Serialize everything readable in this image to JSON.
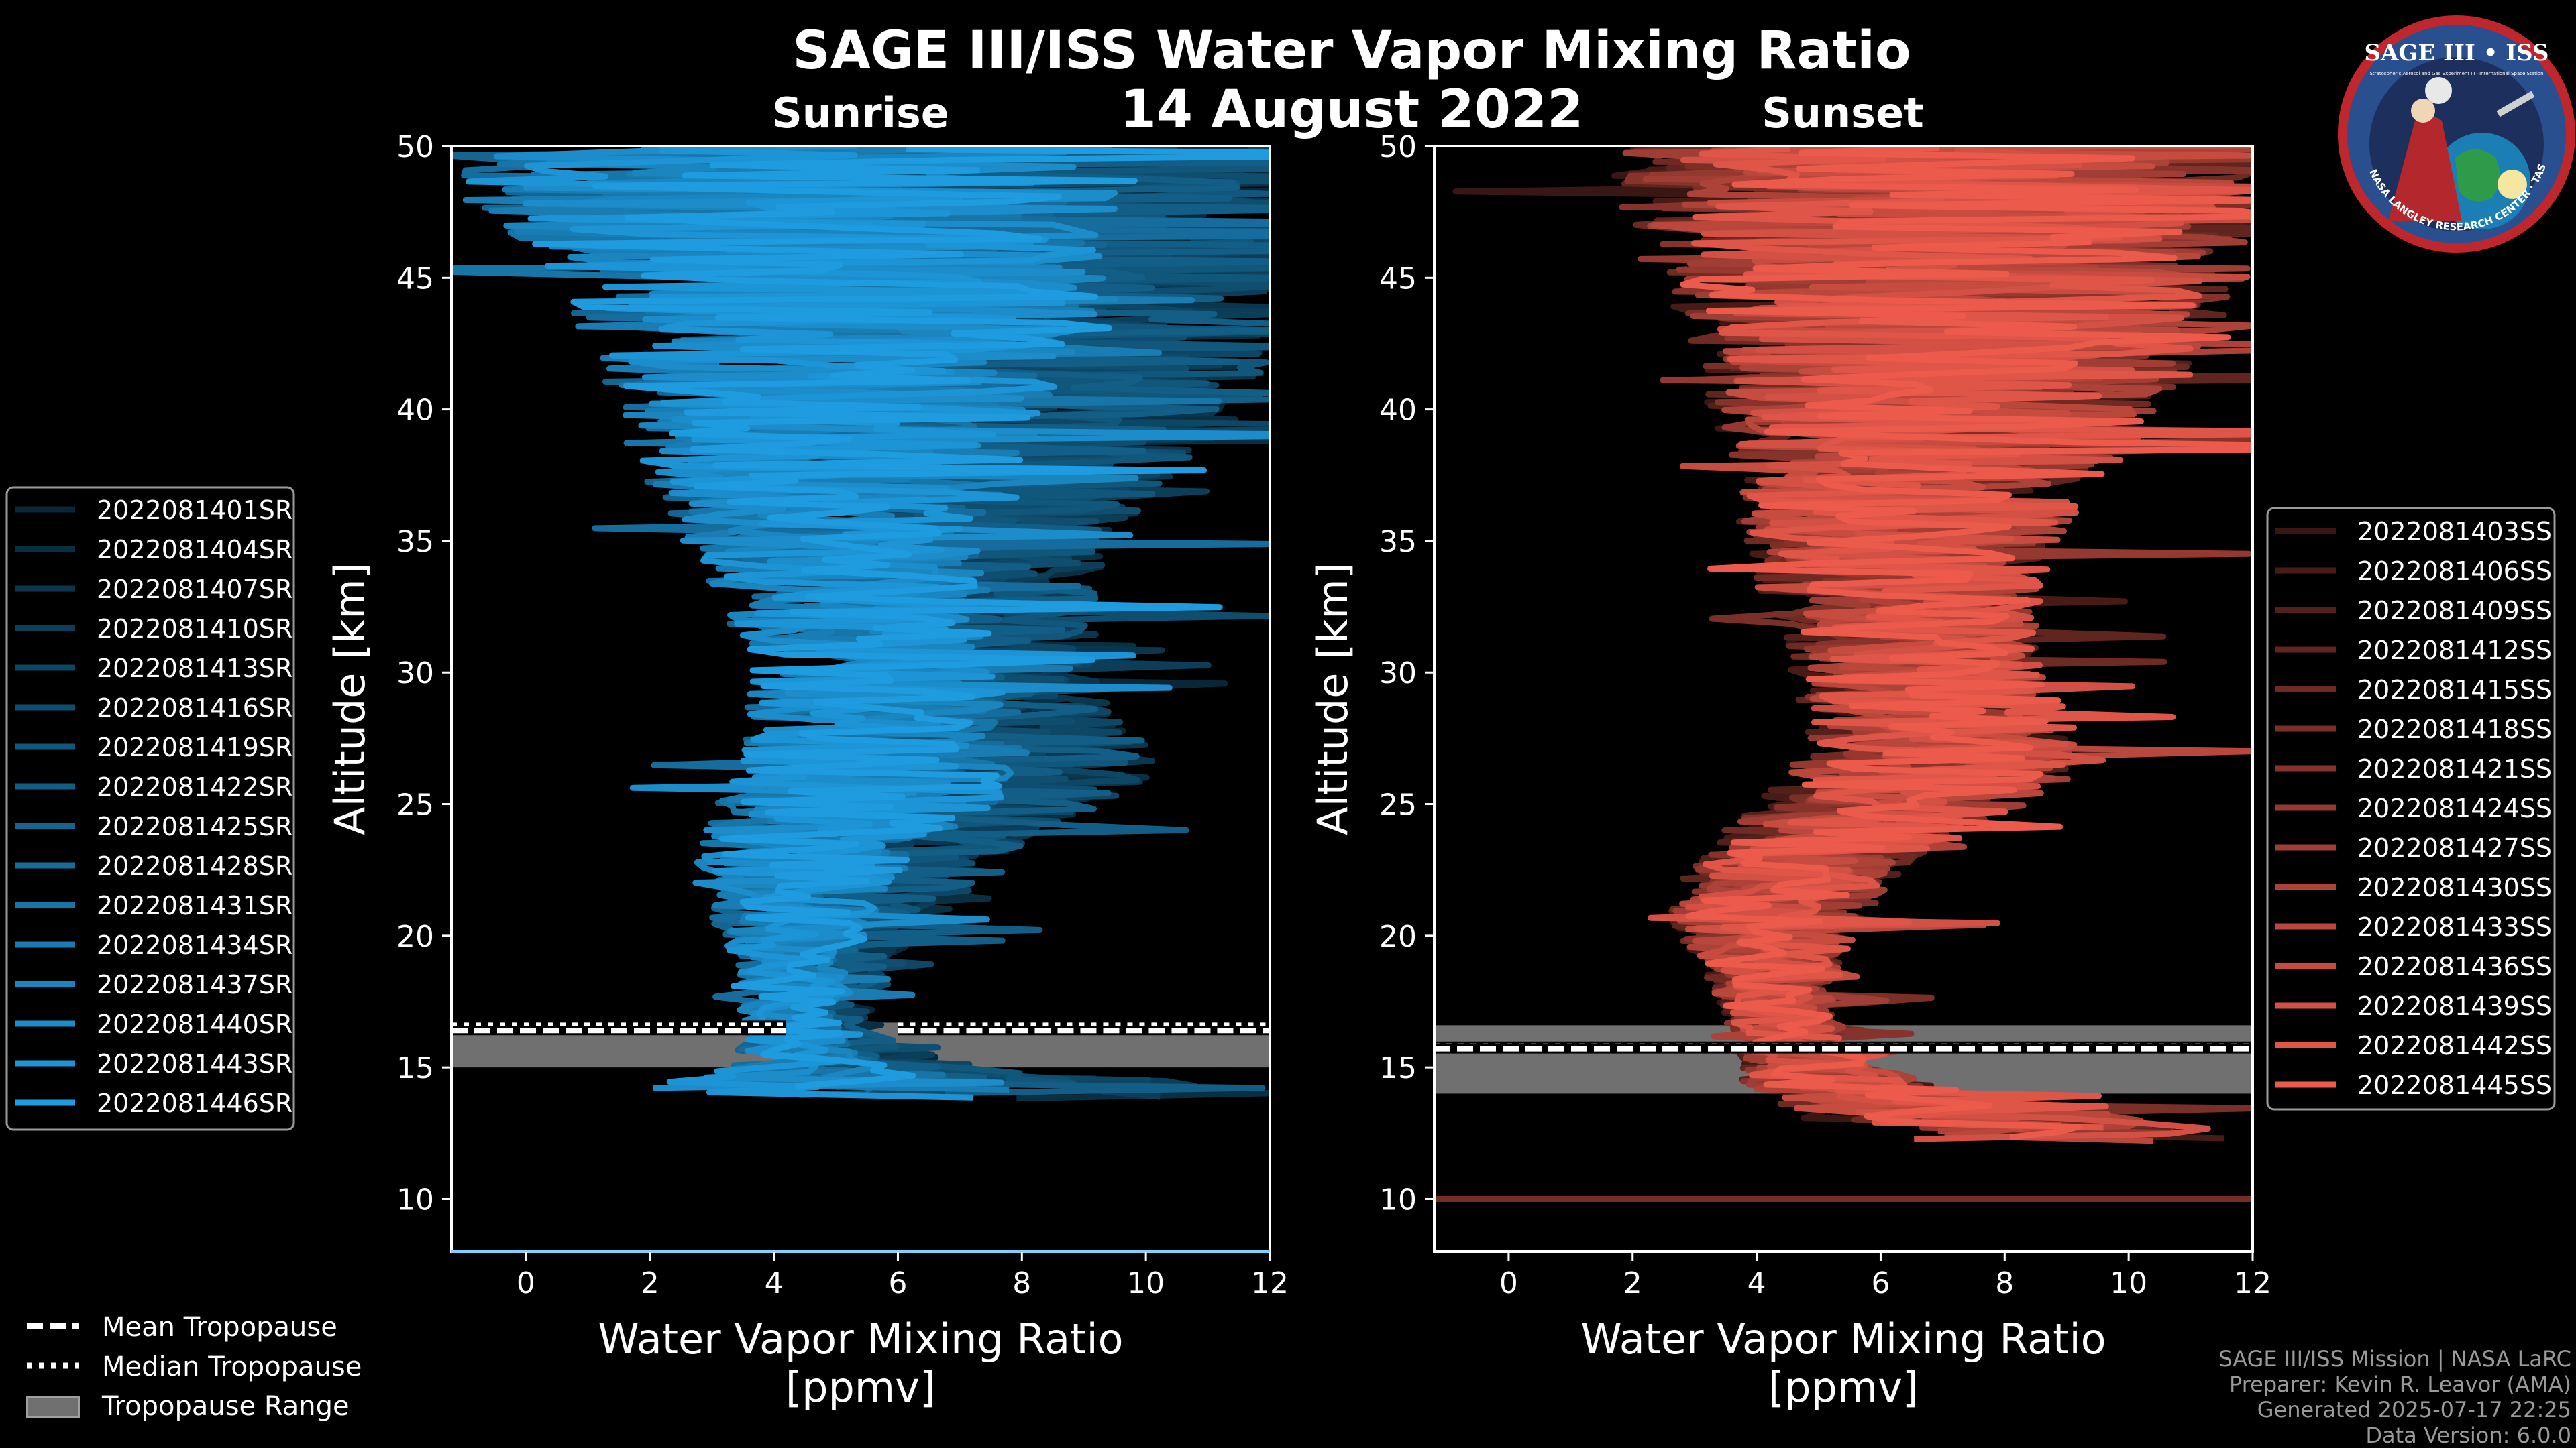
{
  "title": "SAGE III/ISS Water Vapor Mixing Ratio",
  "date": "14 August 2022",
  "colors": {
    "sunrise": "#1f9ce0",
    "sunset": "#ec5a4c",
    "background": "#000000",
    "tropo_range": "#707070"
  },
  "chart_data": [
    {
      "type": "line",
      "panel": "Sunrise",
      "title": "Sunrise",
      "xlabel": "Water Vapor Mixing Ratio\n[ppmv]",
      "ylabel": "Altitude [km]",
      "xlim": [
        -1.2,
        12
      ],
      "ylim": [
        8,
        50
      ],
      "xticks": [
        0,
        2,
        4,
        6,
        8,
        10,
        12
      ],
      "yticks": [
        10,
        15,
        20,
        25,
        30,
        35,
        40,
        45,
        50
      ],
      "tropopause": {
        "mean": 16.4,
        "median": 16.6,
        "range": [
          15.0,
          16.7
        ],
        "mean_gap": [
          4.2,
          6.0
        ],
        "median_gap": [
          4.2,
          6.0
        ]
      },
      "series_count": 16,
      "series_names": [
        "2022081401SR",
        "2022081404SR",
        "2022081407SR",
        "2022081410SR",
        "2022081413SR",
        "2022081416SR",
        "2022081419SR",
        "2022081422SR",
        "2022081425SR",
        "2022081428SR",
        "2022081431SR",
        "2022081434SR",
        "2022081437SR",
        "2022081440SR",
        "2022081443SR",
        "2022081446SR"
      ],
      "profile": {
        "alt": [
          14.2,
          15,
          16,
          17,
          18,
          19,
          20,
          21,
          22,
          23,
          24,
          25,
          26,
          27,
          28,
          30,
          32,
          34,
          36,
          38,
          40,
          42,
          44,
          46,
          48,
          50
        ],
        "center": [
          6.5,
          5.2,
          4.7,
          4.5,
          4.6,
          4.7,
          4.8,
          4.9,
          5.0,
          5.3,
          5.7,
          6.3,
          6.7,
          6.8,
          6.6,
          6.4,
          6.2,
          6.0,
          6.0,
          6.2,
          6.6,
          7.0,
          6.8,
          6.6,
          6.5,
          6.5
        ],
        "spread": [
          4.5,
          1.5,
          1.0,
          0.9,
          1.0,
          1.1,
          1.3,
          1.6,
          1.8,
          2.0,
          2.2,
          2.5,
          2.7,
          2.6,
          2.4,
          2.2,
          2.3,
          2.6,
          3.0,
          3.5,
          4.0,
          4.5,
          5.0,
          5.5,
          6.0,
          6.5
        ]
      }
    },
    {
      "type": "line",
      "panel": "Sunset",
      "title": "Sunset",
      "xlabel": "Water Vapor Mixing Ratio\n[ppmv]",
      "ylabel": "Altitude [km]",
      "xlim": [
        -1.2,
        12
      ],
      "ylim": [
        8,
        50
      ],
      "xticks": [
        0,
        2,
        4,
        6,
        8,
        10,
        12
      ],
      "yticks": [
        10,
        15,
        20,
        25,
        30,
        35,
        40,
        45,
        50
      ],
      "tropopause": {
        "mean": 15.7,
        "median": 15.8,
        "range": [
          14.0,
          16.6
        ],
        "mean_gap": [
          -100,
          -100
        ],
        "median_gap": [
          -100,
          -100
        ]
      },
      "series_count": 15,
      "series_names": [
        "2022081403SS",
        "2022081406SS",
        "2022081409SS",
        "2022081412SS",
        "2022081415SS",
        "2022081418SS",
        "2022081421SS",
        "2022081424SS",
        "2022081427SS",
        "2022081430SS",
        "2022081433SS",
        "2022081436SS",
        "2022081439SS",
        "2022081442SS",
        "2022081445SS"
      ],
      "profile": {
        "alt": [
          12.6,
          13,
          14,
          15,
          16,
          17,
          18,
          19,
          20,
          21,
          22,
          23,
          24,
          25,
          26,
          27,
          28,
          30,
          32,
          34,
          36,
          38,
          40,
          42,
          44,
          46,
          48,
          50
        ],
        "center": [
          9.0,
          7.5,
          5.5,
          4.8,
          4.5,
          4.3,
          4.2,
          4.2,
          4.1,
          4.2,
          4.4,
          4.8,
          5.4,
          6.1,
          6.6,
          6.8,
          6.8,
          6.6,
          6.3,
          6.2,
          6.3,
          6.5,
          6.8,
          7.0,
          7.1,
          7.0,
          7.0,
          7.0
        ],
        "spread": [
          3.0,
          3.0,
          2.0,
          1.2,
          1.0,
          1.0,
          1.1,
          1.3,
          1.6,
          1.8,
          1.9,
          2.0,
          2.2,
          2.4,
          2.6,
          2.6,
          2.4,
          2.2,
          2.3,
          2.6,
          3.0,
          3.5,
          4.0,
          4.5,
          5.0,
          5.5,
          6.0,
          6.5
        ]
      },
      "extra_line": {
        "alt": 10.0,
        "x": [
          -1.2,
          12
        ]
      }
    }
  ],
  "legend_sunrise": [
    "2022081401SR",
    "2022081404SR",
    "2022081407SR",
    "2022081410SR",
    "2022081413SR",
    "2022081416SR",
    "2022081419SR",
    "2022081422SR",
    "2022081425SR",
    "2022081428SR",
    "2022081431SR",
    "2022081434SR",
    "2022081437SR",
    "2022081440SR",
    "2022081443SR",
    "2022081446SR"
  ],
  "legend_sunset": [
    "2022081403SS",
    "2022081406SS",
    "2022081409SS",
    "2022081412SS",
    "2022081415SS",
    "2022081418SS",
    "2022081421SS",
    "2022081424SS",
    "2022081427SS",
    "2022081430SS",
    "2022081433SS",
    "2022081436SS",
    "2022081439SS",
    "2022081442SS",
    "2022081445SS"
  ],
  "tropo_legend": [
    "Mean Tropopause",
    "Median Tropopause",
    "Tropopause Range"
  ],
  "logo": {
    "title": "SAGE III • ISS",
    "subtitle": "Stratospheric Aerosol and Gas Experiment III · International Space Station",
    "ring": "BALL · NASA LANGLEY RESEARCH CENTER · TAS · ESA"
  },
  "footer": [
    "SAGE III/ISS Mission | NASA LaRC",
    "Preparer: Kevin R. Leavor (AMA)",
    "Generated 2025-07-17 22:25",
    "Data Version: 6.0.0"
  ]
}
